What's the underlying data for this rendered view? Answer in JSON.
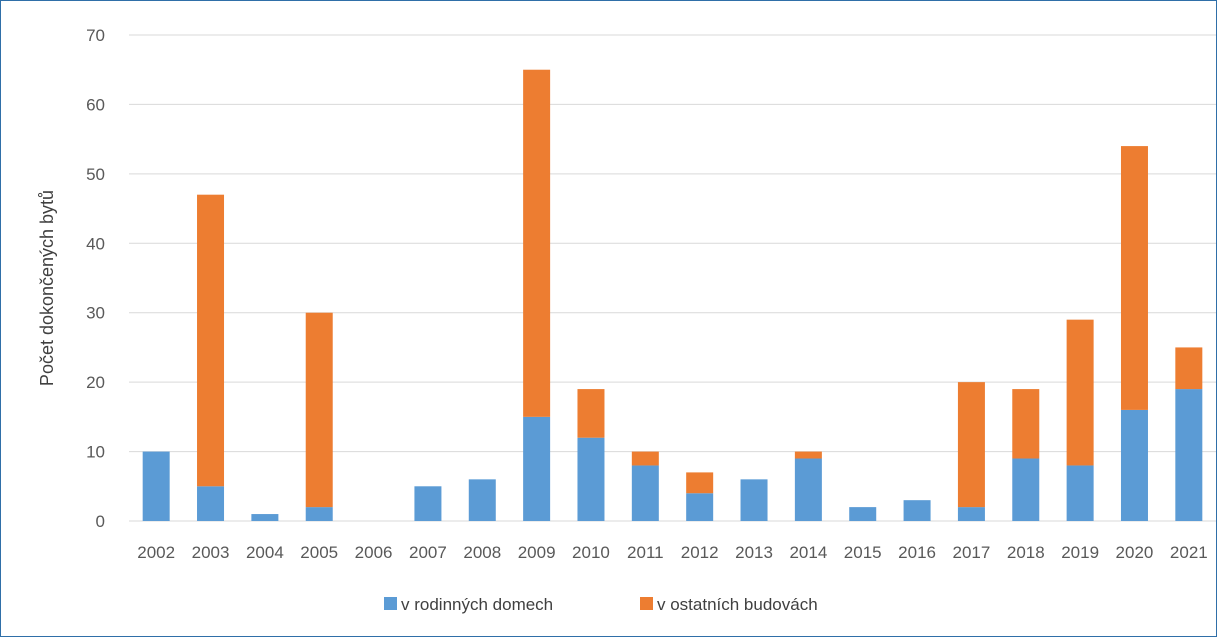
{
  "chart_data": {
    "type": "bar",
    "stacked": true,
    "categories": [
      "2002",
      "2003",
      "2004",
      "2005",
      "2006",
      "2007",
      "2008",
      "2009",
      "2010",
      "2011",
      "2012",
      "2013",
      "2014",
      "2015",
      "2016",
      "2017",
      "2018",
      "2019",
      "2020",
      "2021"
    ],
    "series": [
      {
        "name": "v rodinných domech",
        "color": "#5b9bd5",
        "values": [
          10,
          5,
          1,
          2,
          0,
          5,
          6,
          15,
          12,
          8,
          4,
          6,
          9,
          2,
          3,
          2,
          9,
          8,
          16,
          19
        ]
      },
      {
        "name": "v ostatních budovách",
        "color": "#ed7d31",
        "values": [
          0,
          42,
          0,
          28,
          0,
          0,
          0,
          50,
          7,
          2,
          3,
          0,
          1,
          0,
          0,
          18,
          10,
          21,
          38,
          6
        ]
      }
    ],
    "title": "",
    "xlabel": "",
    "ylabel": "Počet dokončených bytů",
    "ylim": [
      0,
      70
    ],
    "yticks": [
      0,
      10,
      20,
      30,
      40,
      50,
      60,
      70
    ],
    "grid": true,
    "legend_position": "bottom"
  }
}
